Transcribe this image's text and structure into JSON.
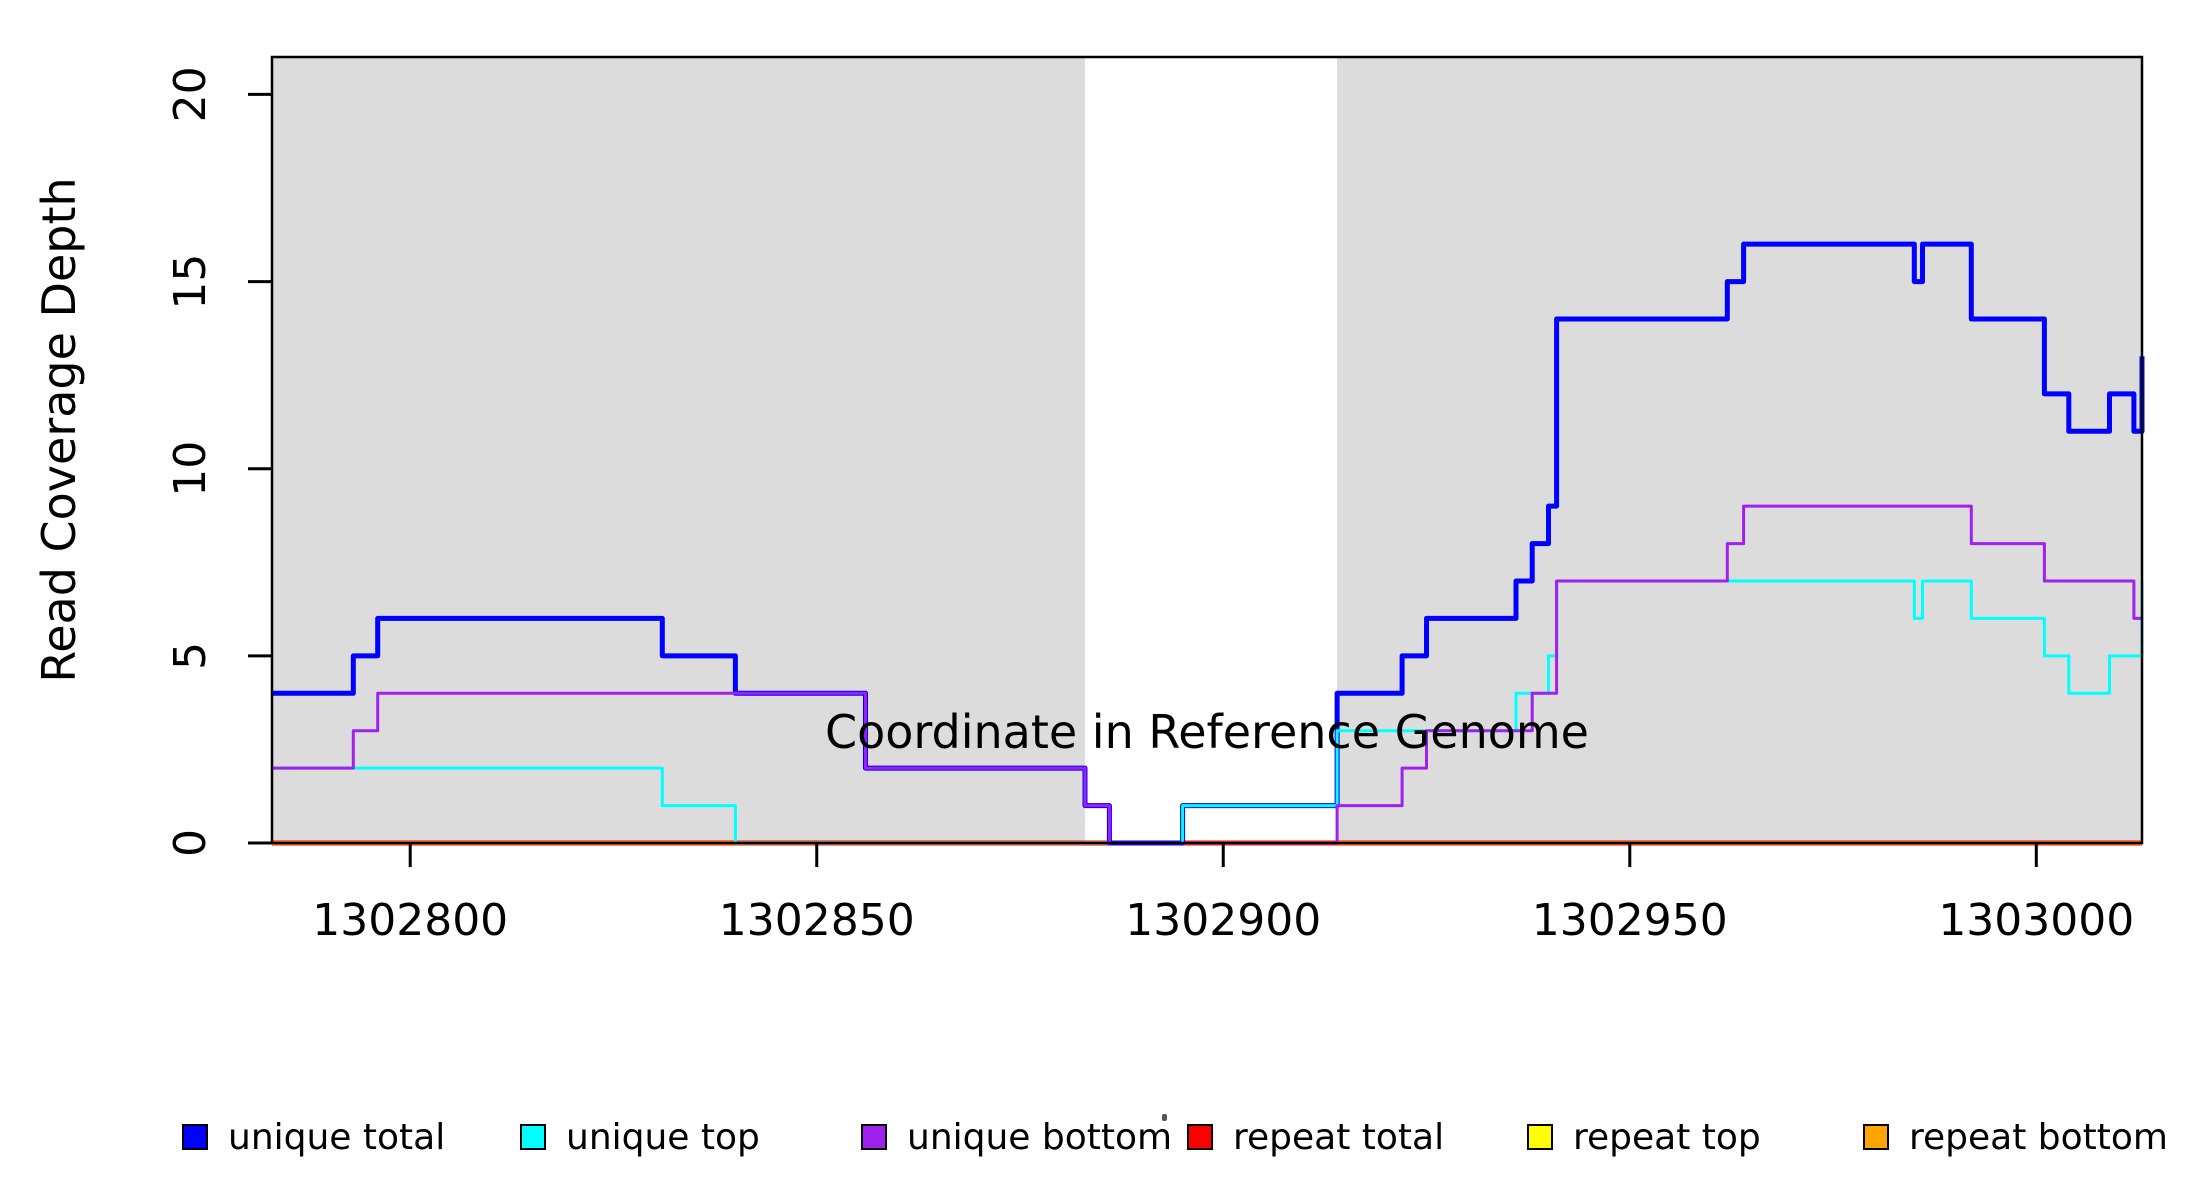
{
  "chart_data": {
    "type": "line",
    "subtype": "step-coverage",
    "title": "",
    "xlabel": "Coordinate in Reference Genome",
    "ylabel": "Read Coverage Depth",
    "xlim": [
      1302783,
      1303013
    ],
    "ylim": [
      0,
      21
    ],
    "x_ticks": [
      "1302800",
      "1302850",
      "1302900",
      "1302950",
      "1303000"
    ],
    "x_tick_values": [
      1302800,
      1302850,
      1302900,
      1302950,
      1303000
    ],
    "y_ticks": [
      "0",
      "5",
      "10",
      "15",
      "20"
    ],
    "y_tick_values": [
      0,
      5,
      10,
      15,
      20
    ],
    "grid": false,
    "legend_position": "bottom",
    "plot_background": "#FFFFFF",
    "shaded_regions": {
      "color": "#DCDCDC",
      "meaning": "repeat-region-shading",
      "ranges": [
        [
          1302783,
          1302883
        ],
        [
          1302914,
          1303013
        ]
      ]
    },
    "series": [
      {
        "name": "unique total",
        "color": "#0000FF",
        "width": 5,
        "points": [
          [
            1302783,
            4
          ],
          [
            1302793,
            5
          ],
          [
            1302796,
            6
          ],
          [
            1302831,
            5
          ],
          [
            1302840,
            4
          ],
          [
            1302856,
            2
          ],
          [
            1302883,
            1
          ],
          [
            1302886,
            0
          ],
          [
            1302895,
            1
          ],
          [
            1302914,
            4
          ],
          [
            1302922,
            5
          ],
          [
            1302925,
            6
          ],
          [
            1302936,
            7
          ],
          [
            1302938,
            8
          ],
          [
            1302940,
            9
          ],
          [
            1302941,
            14
          ],
          [
            1302962,
            15
          ],
          [
            1302964,
            16
          ],
          [
            1302985,
            15
          ],
          [
            1302986,
            16
          ],
          [
            1302992,
            14
          ],
          [
            1303001,
            12
          ],
          [
            1303004,
            11
          ],
          [
            1303009,
            12
          ],
          [
            1303012,
            11
          ],
          [
            1303013,
            13
          ]
        ]
      },
      {
        "name": "unique top",
        "color": "#00FFFF",
        "width": 3,
        "points": [
          [
            1302783,
            2
          ],
          [
            1302831,
            1
          ],
          [
            1302840,
            0
          ],
          [
            1302895,
            1
          ],
          [
            1302914,
            3
          ],
          [
            1302936,
            4
          ],
          [
            1302940,
            5
          ],
          [
            1302941,
            7
          ],
          [
            1302985,
            6
          ],
          [
            1302986,
            7
          ],
          [
            1302992,
            6
          ],
          [
            1303001,
            5
          ],
          [
            1303004,
            4
          ],
          [
            1303009,
            5
          ],
          [
            1303013,
            7
          ]
        ]
      },
      {
        "name": "unique bottom",
        "color": "#A020F0",
        "width": 3,
        "points": [
          [
            1302783,
            2
          ],
          [
            1302793,
            3
          ],
          [
            1302796,
            4
          ],
          [
            1302856,
            2
          ],
          [
            1302883,
            1
          ],
          [
            1302886,
            0
          ],
          [
            1302914,
            1
          ],
          [
            1302922,
            2
          ],
          [
            1302925,
            3
          ],
          [
            1302938,
            4
          ],
          [
            1302941,
            7
          ],
          [
            1302962,
            8
          ],
          [
            1302964,
            9
          ],
          [
            1302992,
            8
          ],
          [
            1303001,
            7
          ],
          [
            1303012,
            6
          ]
        ]
      },
      {
        "name": "repeat total",
        "color": "#FF0000",
        "width": 5,
        "points": [
          [
            1302783,
            0
          ],
          [
            1303013,
            0
          ]
        ]
      },
      {
        "name": "repeat top",
        "color": "#FFFF00",
        "width": 3,
        "points": [
          [
            1302783,
            0
          ],
          [
            1303013,
            0
          ]
        ]
      },
      {
        "name": "repeat bottom",
        "color": "#FFA500",
        "width": 3.5,
        "points": [
          [
            1302783,
            0
          ],
          [
            1303013,
            0
          ]
        ]
      }
    ],
    "draw_order": [
      "repeat total",
      "repeat top",
      "repeat bottom",
      "unique total",
      "unique top",
      "unique bottom"
    ]
  }
}
